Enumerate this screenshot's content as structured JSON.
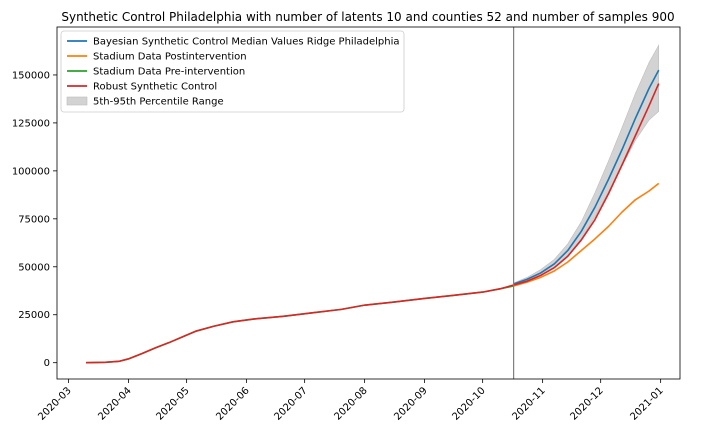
{
  "chart_data": {
    "type": "line",
    "title": "Synthetic Control Philadelphia with number of latents 10 and counties 52 and number of samples 900",
    "xlabel": "",
    "ylabel": "",
    "x_type": "date",
    "xlim": [
      "2020-02-24",
      "2021-01-11"
    ],
    "ylim": [
      -8500,
      175000
    ],
    "x_ticks": [
      "2020-03-01",
      "2020-04-01",
      "2020-05-01",
      "2020-06-01",
      "2020-07-01",
      "2020-08-01",
      "2020-09-01",
      "2020-10-01",
      "2020-11-01",
      "2020-12-01",
      "2021-01-01"
    ],
    "x_tick_labels": [
      "2020-03",
      "2020-04",
      "2020-05",
      "2020-06",
      "2020-07",
      "2020-08",
      "2020-09",
      "2020-10",
      "2020-11",
      "2020-12",
      "2021-01"
    ],
    "y_ticks": [
      0,
      25000,
      50000,
      75000,
      100000,
      125000,
      150000
    ],
    "y_tick_labels": [
      "0",
      "25000",
      "50000",
      "75000",
      "100000",
      "125000",
      "150000"
    ],
    "grid": false,
    "legend_placement": "upper-left",
    "intervention_date": "2020-10-17",
    "legend": [
      {
        "label": "Bayesian Synthetic Control Median Values Ridge Philadelphia",
        "color": "#1f77b4",
        "kind": "line"
      },
      {
        "label": "Stadium Data Postintervention",
        "color": "#ff7f0e",
        "kind": "line"
      },
      {
        "label": "Stadium Data Pre-intervention",
        "color": "#2ca02c",
        "kind": "line"
      },
      {
        "label": "Robust Synthetic Control",
        "color": "#d62728",
        "kind": "line"
      },
      {
        "label": "5th-95th Percentile Range",
        "color": "#d3d3d3",
        "kind": "patch"
      }
    ],
    "series": [
      {
        "name": "Bayesian Synthetic Control Median Values Ridge Philadelphia",
        "color": "#1f77b4",
        "points": [
          [
            "2020-10-17",
            41000
          ],
          [
            "2020-10-24",
            43500
          ],
          [
            "2020-10-31",
            46800
          ],
          [
            "2020-11-07",
            51500
          ],
          [
            "2020-11-14",
            58500
          ],
          [
            "2020-11-21",
            68500
          ],
          [
            "2020-11-28",
            81000
          ],
          [
            "2020-12-05",
            95500
          ],
          [
            "2020-12-12",
            111000
          ],
          [
            "2020-12-19",
            127500
          ],
          [
            "2020-12-26",
            143000
          ],
          [
            "2020-12-31",
            152500
          ]
        ]
      },
      {
        "name": "Stadium Data Postintervention",
        "color": "#ff7f0e",
        "points": [
          [
            "2020-10-17",
            40000
          ],
          [
            "2020-10-24",
            42000
          ],
          [
            "2020-10-31",
            44500
          ],
          [
            "2020-11-07",
            47800
          ],
          [
            "2020-11-14",
            52500
          ],
          [
            "2020-11-21",
            58500
          ],
          [
            "2020-11-28",
            64500
          ],
          [
            "2020-12-05",
            71000
          ],
          [
            "2020-12-12",
            78500
          ],
          [
            "2020-12-19",
            85000
          ],
          [
            "2020-12-26",
            89500
          ],
          [
            "2020-12-31",
            93500
          ]
        ]
      },
      {
        "name": "Stadium Data Pre-intervention",
        "color": "#2ca02c",
        "points": [
          [
            "2020-03-10",
            0
          ],
          [
            "2020-03-20",
            200
          ],
          [
            "2020-03-27",
            700
          ],
          [
            "2020-04-01",
            2000
          ],
          [
            "2020-04-08",
            4800
          ],
          [
            "2020-04-15",
            7800
          ],
          [
            "2020-04-22",
            10500
          ],
          [
            "2020-04-29",
            13500
          ],
          [
            "2020-05-06",
            16500
          ],
          [
            "2020-05-15",
            19000
          ],
          [
            "2020-05-25",
            21300
          ],
          [
            "2020-06-05",
            22800
          ],
          [
            "2020-06-20",
            24200
          ],
          [
            "2020-07-05",
            26000
          ],
          [
            "2020-07-20",
            27800
          ],
          [
            "2020-08-01",
            30000
          ],
          [
            "2020-08-15",
            31500
          ],
          [
            "2020-09-01",
            33500
          ],
          [
            "2020-09-15",
            35000
          ],
          [
            "2020-10-01",
            36800
          ],
          [
            "2020-10-10",
            38500
          ],
          [
            "2020-10-17",
            40000
          ]
        ]
      },
      {
        "name": "Robust Synthetic Control",
        "color": "#d62728",
        "points": [
          [
            "2020-03-10",
            0
          ],
          [
            "2020-03-20",
            200
          ],
          [
            "2020-03-27",
            700
          ],
          [
            "2020-04-01",
            2000
          ],
          [
            "2020-04-08",
            4800
          ],
          [
            "2020-04-15",
            7800
          ],
          [
            "2020-04-22",
            10500
          ],
          [
            "2020-04-29",
            13500
          ],
          [
            "2020-05-06",
            16500
          ],
          [
            "2020-05-15",
            19000
          ],
          [
            "2020-05-25",
            21300
          ],
          [
            "2020-06-05",
            22800
          ],
          [
            "2020-06-20",
            24200
          ],
          [
            "2020-07-05",
            26000
          ],
          [
            "2020-07-20",
            27800
          ],
          [
            "2020-08-01",
            30000
          ],
          [
            "2020-08-15",
            31500
          ],
          [
            "2020-09-01",
            33500
          ],
          [
            "2020-09-15",
            35000
          ],
          [
            "2020-10-01",
            36800
          ],
          [
            "2020-10-10",
            38500
          ],
          [
            "2020-10-17",
            40500
          ],
          [
            "2020-10-24",
            42500
          ],
          [
            "2020-10-31",
            45500
          ],
          [
            "2020-11-07",
            49500
          ],
          [
            "2020-11-14",
            55500
          ],
          [
            "2020-11-21",
            64000
          ],
          [
            "2020-11-28",
            74500
          ],
          [
            "2020-12-05",
            88000
          ],
          [
            "2020-12-12",
            103000
          ],
          [
            "2020-12-19",
            118500
          ],
          [
            "2020-12-26",
            134000
          ],
          [
            "2020-12-31",
            145500
          ]
        ]
      }
    ],
    "band": {
      "name": "5th-95th Percentile Range",
      "color": "#d3d3d3",
      "lower": [
        [
          "2020-10-17",
          40500
        ],
        [
          "2020-10-24",
          42500
        ],
        [
          "2020-10-31",
          45500
        ],
        [
          "2020-11-07",
          49500
        ],
        [
          "2020-11-14",
          55500
        ],
        [
          "2020-11-21",
          64500
        ],
        [
          "2020-11-28",
          76000
        ],
        [
          "2020-12-05",
          89000
        ],
        [
          "2020-12-12",
          102500
        ],
        [
          "2020-12-19",
          116000
        ],
        [
          "2020-12-26",
          126500
        ],
        [
          "2020-12-31",
          131000
        ]
      ],
      "upper": [
        [
          "2020-10-17",
          41500
        ],
        [
          "2020-10-24",
          44500
        ],
        [
          "2020-10-31",
          48500
        ],
        [
          "2020-11-07",
          53800
        ],
        [
          "2020-11-14",
          62000
        ],
        [
          "2020-11-21",
          73500
        ],
        [
          "2020-11-28",
          88500
        ],
        [
          "2020-12-05",
          105000
        ],
        [
          "2020-12-12",
          122500
        ],
        [
          "2020-12-19",
          140500
        ],
        [
          "2020-12-26",
          156500
        ],
        [
          "2020-12-31",
          165500
        ]
      ]
    }
  }
}
